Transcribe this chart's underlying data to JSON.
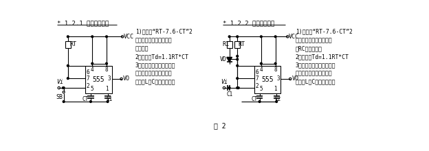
{
  "title_left": "* 1.2.1 脉冲启动单稳",
  "title_right": "* 1.2.2 脉冲启动单稳",
  "caption": "图 2",
  "text_left": "1)特点：“RT-7.6-CT”2\n端输入。外脉冲启动或人\n工启动。\n2）公式：Td=1.1RT*CT\n3）用途：定（延）时、消\n抖动、分（倍）频，脉冲\n输出、L、C速率等检测。",
  "text_right": "1)特点：“RT-7.6-CT”2\n端输入。外脉冲启动输入\n带RC微分电路。\n2）公式：Td=1.1RT*CT\n3）用途：定（延）时、消\n抖动、分（倍）频，脉冲\n输出、L、C速率等检测。",
  "bg_color": "#ffffff",
  "line_color": "#000000",
  "font_color": "#000000"
}
